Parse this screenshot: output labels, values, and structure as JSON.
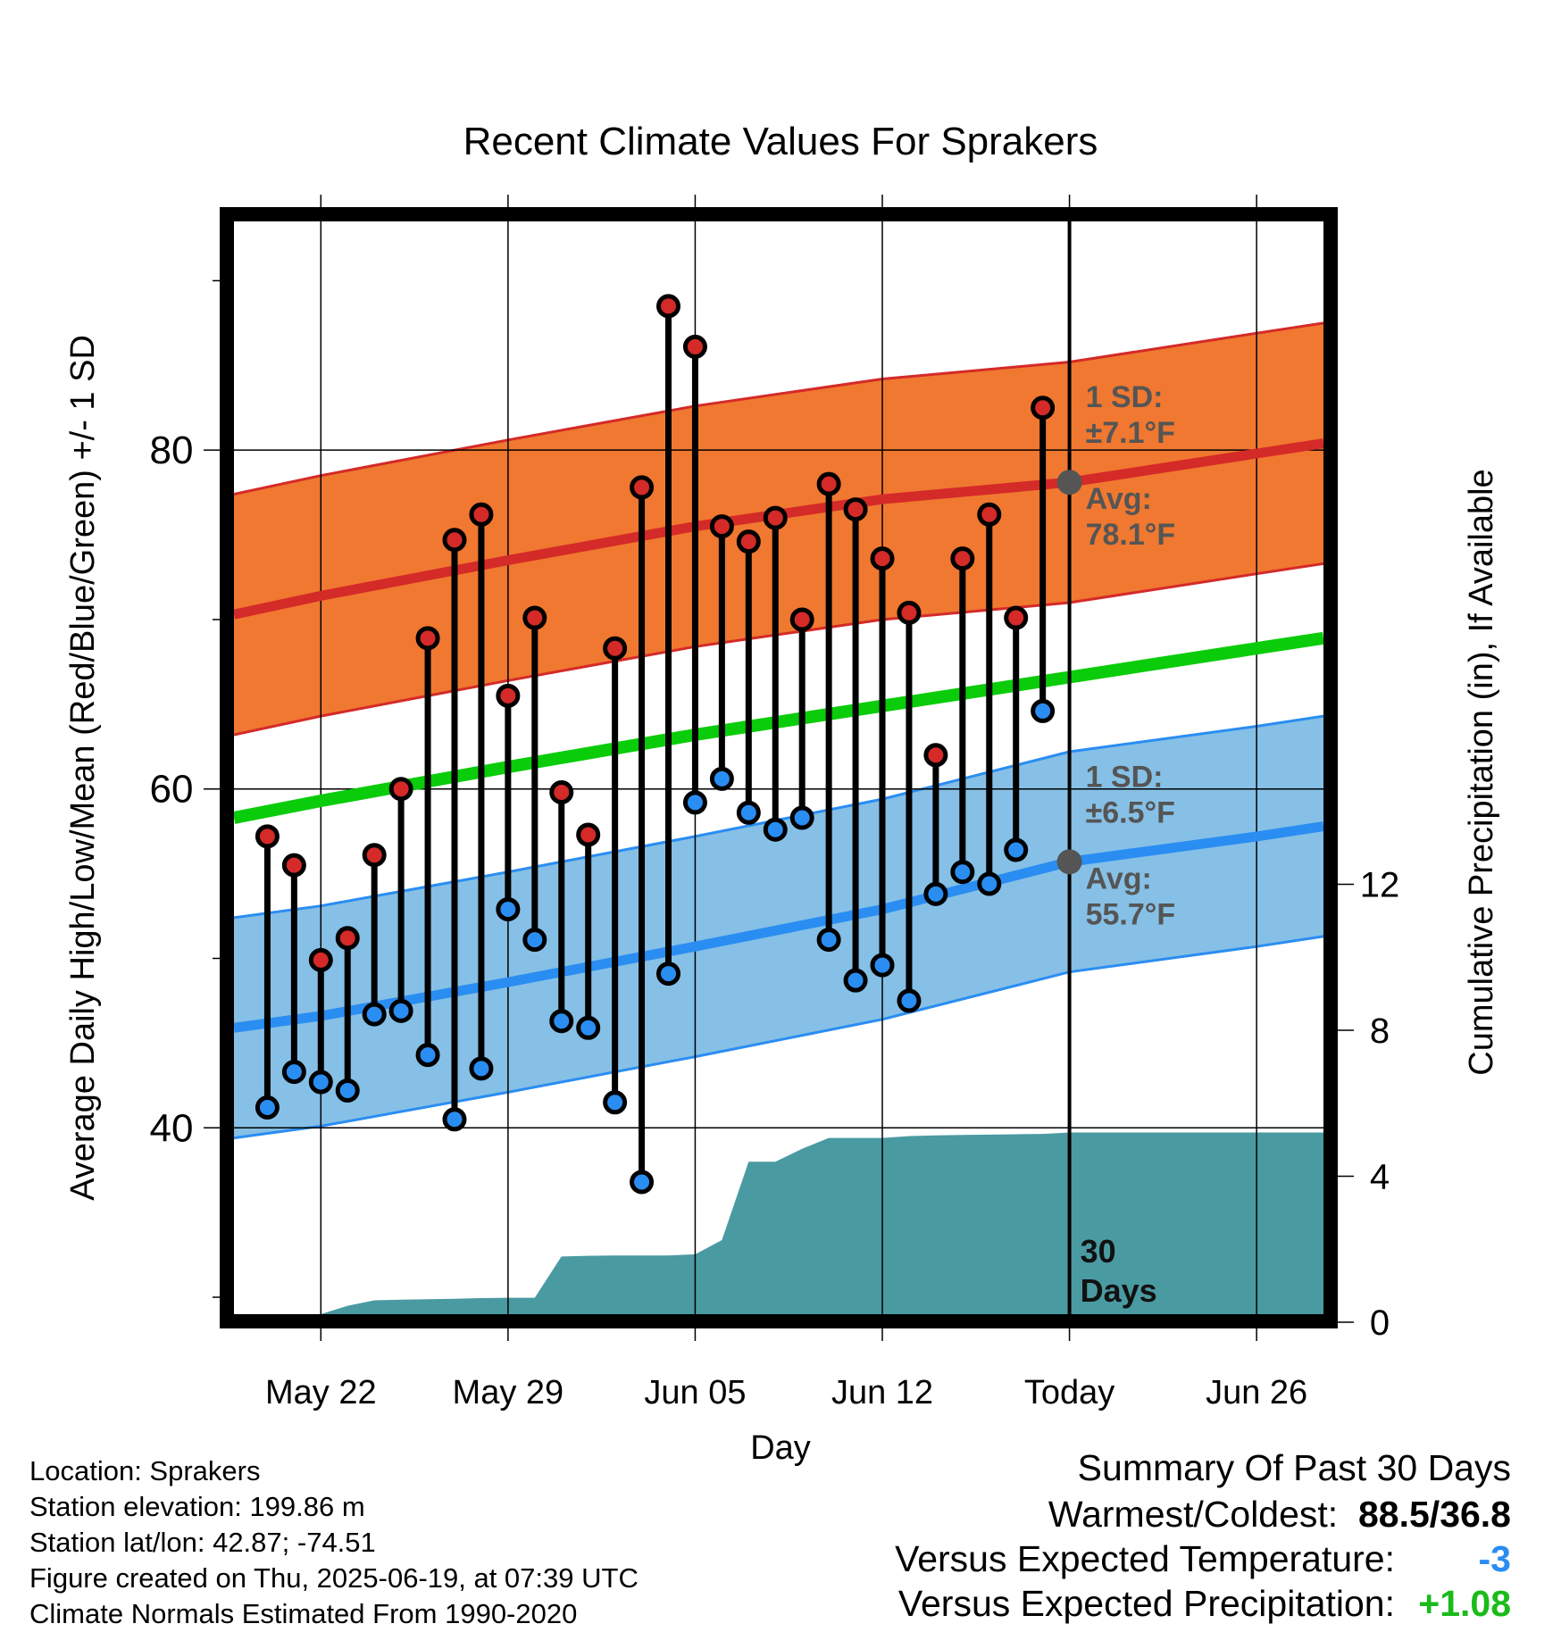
{
  "chart_data": {
    "type": "line",
    "title": "Recent Climate Values For Sprakers",
    "xlabel": "Day",
    "ylabel_left": "Average Daily High/Low/Mean (Red/Blue/Green) +/- 1 SD",
    "ylabel_right": "Cumulative Precipitation (in), If Available",
    "x_ticks": [
      "May 22",
      "May 29",
      "Jun 05",
      "Jun 12",
      "Today",
      "Jun 26"
    ],
    "x_tick_days": [
      22,
      29,
      36,
      43,
      50,
      57
    ],
    "xlim_days": [
      18.75,
      59.5
    ],
    "y_ticks_left": [
      "40",
      "60",
      "80"
    ],
    "y_tick_values_left": [
      40,
      60,
      80
    ],
    "y_minor_ticks_left": [
      30,
      50,
      70,
      90
    ],
    "ylim_left": [
      29.0,
      93.5
    ],
    "y_ticks_right": [
      "0",
      "4",
      "8",
      "12"
    ],
    "y_tick_values_right": [
      0,
      4,
      8,
      12
    ],
    "ylim_right": [
      0,
      24
    ],
    "grid": true,
    "today_day": 50,
    "today_label": "30\nDays",
    "days": [
      20,
      21,
      22,
      23,
      24,
      25,
      26,
      27,
      28,
      29,
      30,
      31,
      32,
      33,
      34,
      35,
      36,
      37,
      38,
      39,
      40,
      41,
      42,
      43,
      44,
      45,
      46,
      47,
      48,
      49
    ],
    "daily_high": [
      57.2,
      55.5,
      49.9,
      51.2,
      56.1,
      60.0,
      68.9,
      74.7,
      76.2,
      65.5,
      70.1,
      59.8,
      57.3,
      68.3,
      77.8,
      88.5,
      86.1,
      75.5,
      74.6,
      76.0,
      70.0,
      78.0,
      76.5,
      73.6,
      70.4,
      62.0,
      73.6,
      76.2,
      70.1,
      82.5
    ],
    "daily_low": [
      41.2,
      43.3,
      42.7,
      42.2,
      46.7,
      46.9,
      44.3,
      40.5,
      43.5,
      52.9,
      51.1,
      46.3,
      45.9,
      41.5,
      36.8,
      49.1,
      59.2,
      60.6,
      58.6,
      57.6,
      58.3,
      51.1,
      48.7,
      49.6,
      47.5,
      53.8,
      55.1,
      54.4,
      56.4,
      64.6
    ],
    "normals": {
      "days": [
        18.75,
        22,
        29,
        36,
        43,
        50,
        57,
        59.5
      ],
      "mean": [
        58.3,
        59.3,
        61.3,
        63.2,
        64.9,
        66.6,
        68.3,
        68.9
      ],
      "high_avg": [
        70.3,
        71.4,
        73.5,
        75.5,
        77.1,
        78.1,
        79.8,
        80.4
      ],
      "high_sd": 7.1,
      "low_avg": [
        45.9,
        46.6,
        48.6,
        50.7,
        52.9,
        55.7,
        57.2,
        57.8
      ],
      "low_sd": 6.5
    },
    "precip_cumulative": {
      "days": [
        18.75,
        20.0,
        21.0,
        22.0,
        23.0,
        24.0,
        25.0,
        26.0,
        27.0,
        28.0,
        29.0,
        30.0,
        31.0,
        32.0,
        33.0,
        34.0,
        35.0,
        36.0,
        37.0,
        38.0,
        39.0,
        40.0,
        41.0,
        42.0,
        43.0,
        44.0,
        45.0,
        46.0,
        47.0,
        48.0,
        49.0,
        50.0,
        59.5
      ],
      "values": [
        0,
        0,
        0,
        0.2,
        0.45,
        0.6,
        0.62,
        0.63,
        0.64,
        0.66,
        0.67,
        0.67,
        1.8,
        1.82,
        1.83,
        1.83,
        1.83,
        1.86,
        2.25,
        4.4,
        4.4,
        4.75,
        5.05,
        5.05,
        5.05,
        5.1,
        5.12,
        5.13,
        5.14,
        5.15,
        5.16,
        5.2,
        5.2
      ]
    },
    "annotations": {
      "high_sd_label": "1 SD:",
      "high_sd_value": "±7.1°F",
      "high_avg_label": "Avg:",
      "high_avg_value": "78.1°F",
      "low_sd_label": "1 SD:",
      "low_sd_value": "±6.5°F",
      "low_avg_label": "Avg:",
      "low_avg_value": "55.7°F",
      "today_avg_high": 78.1,
      "today_avg_low": 55.7
    },
    "colors": {
      "high_band": "#f07830",
      "high_line": "#d42a28",
      "low_band": "#86c0e6",
      "low_line": "#2a8df2",
      "mean_line": "#0acc0a",
      "precip": "#4a9aa2",
      "high_point": "#d42a28",
      "low_point": "#2a8df2",
      "annotation": "#555555"
    }
  },
  "metadata": {
    "location": "Location: Sprakers",
    "elevation": "Station elevation: 199.86 m",
    "latlon": "Station lat/lon: 42.87; -74.51",
    "created": "Figure created on Thu, 2025-06-19, at 07:39 UTC",
    "normals": "Climate Normals Estimated From 1990-2020"
  },
  "summary": {
    "title": "Summary Of Past 30 Days",
    "warm_cold_label": "Warmest/Coldest:",
    "warm_cold_value": "88.5/36.8",
    "temp_label": "Versus Expected Temperature:",
    "temp_value": "-3",
    "temp_color": "#2a8df2",
    "precip_label": "Versus Expected Precipitation:",
    "precip_value": "+1.08",
    "precip_color": "#1abb1a"
  }
}
